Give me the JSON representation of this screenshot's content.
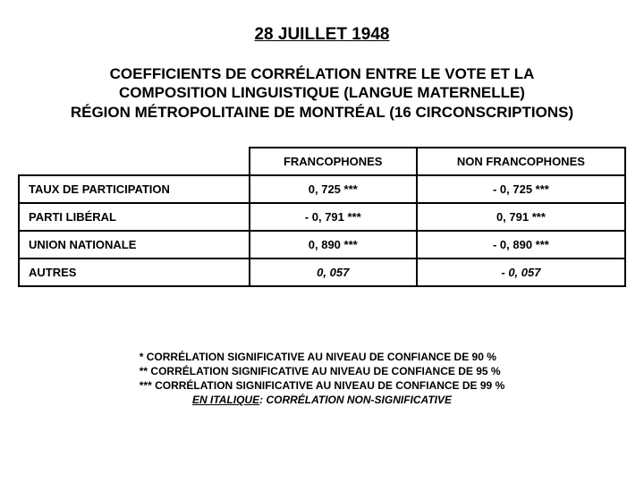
{
  "title": "28 JUILLET 1948",
  "subtitle_line1": "COEFFICIENTS DE CORRÉLATION ENTRE LE VOTE ET LA",
  "subtitle_line2": "COMPOSITION LINGUISTIQUE (LANGUE MATERNELLE)",
  "subtitle_line3": "RÉGION MÉTROPOLITAINE DE MONTRÉAL (16 CIRCONSCRIPTIONS)",
  "table": {
    "columns": [
      "",
      "FRANCOPHONES",
      "NON FRANCOPHONES"
    ],
    "rows": [
      {
        "label": "TAUX DE PARTICIPATION",
        "franco": "0, 725 ***",
        "nonfranco": "- 0, 725 ***",
        "italic": false
      },
      {
        "label": "PARTI LIBÉRAL",
        "franco": "- 0, 791 ***",
        "nonfranco": "0, 791 ***",
        "italic": false
      },
      {
        "label": "UNION NATIONALE",
        "franco": "0, 890 ***",
        "nonfranco": "- 0, 890 ***",
        "italic": false
      },
      {
        "label": "AUTRES",
        "franco": "0, 057",
        "nonfranco": "- 0, 057",
        "italic": true
      }
    ],
    "border_color": "#000000",
    "text_color": "#000000",
    "header_fontsize": 13,
    "cell_fontsize": 13
  },
  "legend": {
    "l1": "*   CORRÉLATION SIGNIFICATIVE AU NIVEAU DE CONFIANCE DE 90 %",
    "l2": "**  CORRÉLATION SIGNIFICATIVE AU NIVEAU DE CONFIANCE DE 95 %",
    "l3": "*** CORRÉLATION SIGNIFICATIVE AU NIVEAU DE CONFIANCE DE 99 %",
    "italic_label": "EN ITALIQUE",
    "italic_text": ": CORRÉLATION NON-SIGNIFICATIVE"
  },
  "style": {
    "background_color": "#ffffff",
    "title_fontsize": 19,
    "subtitle_fontsize": 17,
    "legend_fontsize": 12
  }
}
